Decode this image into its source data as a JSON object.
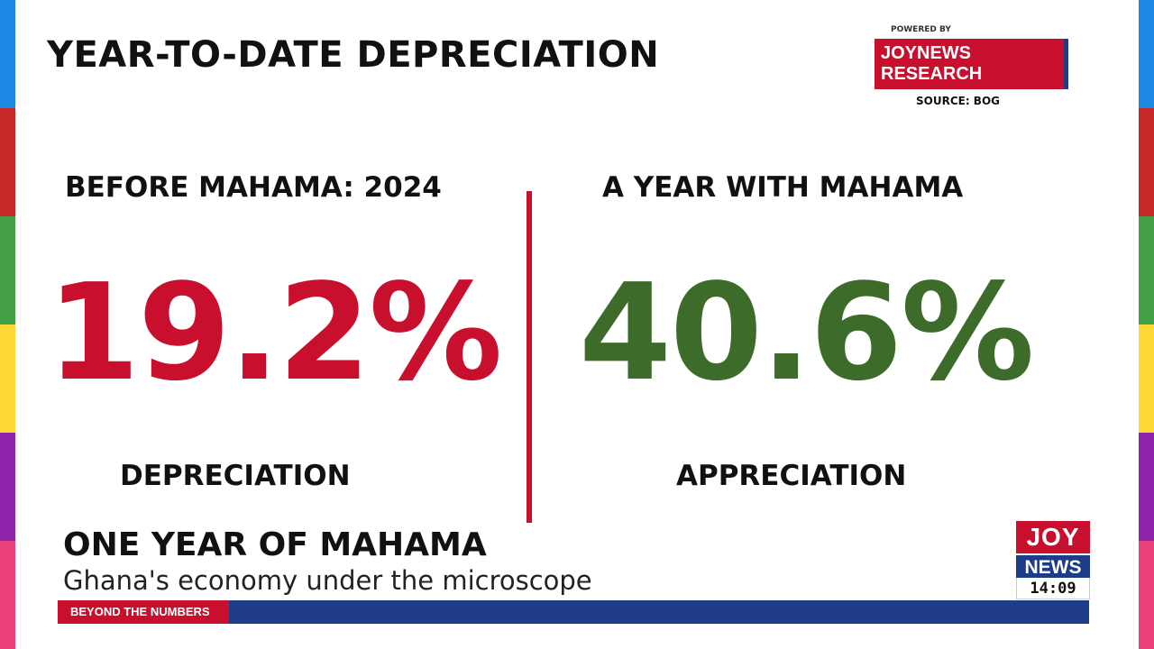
{
  "colors": {
    "red": "#c8102e",
    "green": "#3d6b2a",
    "blue": "#1f3c88",
    "edge_stripes": [
      "#1e88e5",
      "#c62828",
      "#43a047",
      "#fdd835",
      "#8e24aa",
      "#ec407a"
    ]
  },
  "header": {
    "title": "YEAR-TO-DATE DEPRECIATION",
    "powered_by": "POWERED BY",
    "brand": "JOYNEWS RESEARCH",
    "source": "SOURCE: BOG"
  },
  "comparison": {
    "left": {
      "heading": "BEFORE MAHAMA: 2024",
      "value": "19.2%",
      "label": "DEPRECIATION"
    },
    "right": {
      "heading": "A YEAR WITH MAHAMA",
      "value": "40.6%",
      "label": "APPRECIATION"
    }
  },
  "lower_third": {
    "title": "ONE YEAR OF MAHAMA",
    "subtitle": "Ghana's economy under the microscope",
    "tag": "BEYOND THE NUMBERS"
  },
  "logo": {
    "top": "JOY",
    "bottom": "NEWS",
    "time": "14:09"
  }
}
